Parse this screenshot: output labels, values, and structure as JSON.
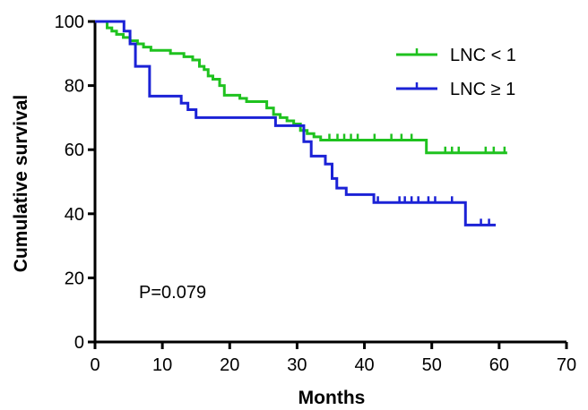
{
  "chart_data": {
    "type": "line",
    "subtype": "kaplan-meier step curve",
    "xlabel": "Months",
    "ylabel": "Cumulative survival",
    "xlim": [
      0,
      70
    ],
    "ylim": [
      0,
      100
    ],
    "x_ticks": [
      0,
      10,
      20,
      30,
      40,
      50,
      60,
      70
    ],
    "y_ticks": [
      0,
      20,
      40,
      60,
      80,
      100
    ],
    "grid": false,
    "legend_position": "top-right",
    "annotation": "P=0.079",
    "series": [
      {
        "name": "LNC < 1",
        "color": "#1fc21f",
        "steps": [
          [
            0,
            100
          ],
          [
            1.8,
            98
          ],
          [
            2.5,
            97
          ],
          [
            3.2,
            96
          ],
          [
            4.2,
            95
          ],
          [
            5.2,
            94
          ],
          [
            6.3,
            93
          ],
          [
            7.2,
            92
          ],
          [
            8.3,
            91
          ],
          [
            11.2,
            90
          ],
          [
            13.2,
            89
          ],
          [
            14.5,
            88
          ],
          [
            15.5,
            86
          ],
          [
            16.2,
            85
          ],
          [
            16.8,
            83
          ],
          [
            17.5,
            82
          ],
          [
            18.5,
            80
          ],
          [
            19.2,
            77
          ],
          [
            21.5,
            76
          ],
          [
            22.5,
            75
          ],
          [
            25.5,
            73
          ],
          [
            26.5,
            71
          ],
          [
            27.5,
            70
          ],
          [
            28.5,
            69
          ],
          [
            29.5,
            68
          ],
          [
            30.5,
            66
          ],
          [
            31.5,
            65
          ],
          [
            32.5,
            64
          ],
          [
            33.5,
            63
          ],
          [
            49.2,
            59
          ]
        ],
        "end_x": 61.2,
        "censored": [
          [
            34.8,
            63
          ],
          [
            36,
            63
          ],
          [
            37,
            63
          ],
          [
            38,
            63
          ],
          [
            39,
            63
          ],
          [
            41.5,
            63
          ],
          [
            44,
            63
          ],
          [
            45.5,
            63
          ],
          [
            47,
            63
          ],
          [
            52,
            59
          ],
          [
            53,
            59
          ],
          [
            54,
            59
          ],
          [
            58,
            59
          ],
          [
            59.2,
            59
          ],
          [
            60.8,
            59
          ]
        ]
      },
      {
        "name": "LNC ≥ 1",
        "color": "#1b22d6",
        "steps": [
          [
            0,
            100
          ],
          [
            4.3,
            97
          ],
          [
            5.2,
            93
          ],
          [
            6,
            86
          ],
          [
            8.1,
            76.7
          ],
          [
            12.8,
            74.5
          ],
          [
            13.8,
            72.5
          ],
          [
            15,
            70
          ],
          [
            26.8,
            67.5
          ],
          [
            31,
            62.5
          ],
          [
            32.1,
            58
          ],
          [
            34.2,
            55.5
          ],
          [
            35.2,
            51
          ],
          [
            35.9,
            48
          ],
          [
            37.3,
            46
          ],
          [
            41.4,
            43.5
          ],
          [
            55,
            36.5
          ]
        ],
        "end_x": 59.5,
        "censored": [
          [
            42,
            43.5
          ],
          [
            45.2,
            43.5
          ],
          [
            46,
            43.5
          ],
          [
            47,
            43.5
          ],
          [
            48,
            43.5
          ],
          [
            49.5,
            43.5
          ],
          [
            50.5,
            43.5
          ],
          [
            53,
            43.5
          ],
          [
            57.3,
            36.5
          ],
          [
            58.5,
            36.5
          ]
        ]
      }
    ]
  }
}
